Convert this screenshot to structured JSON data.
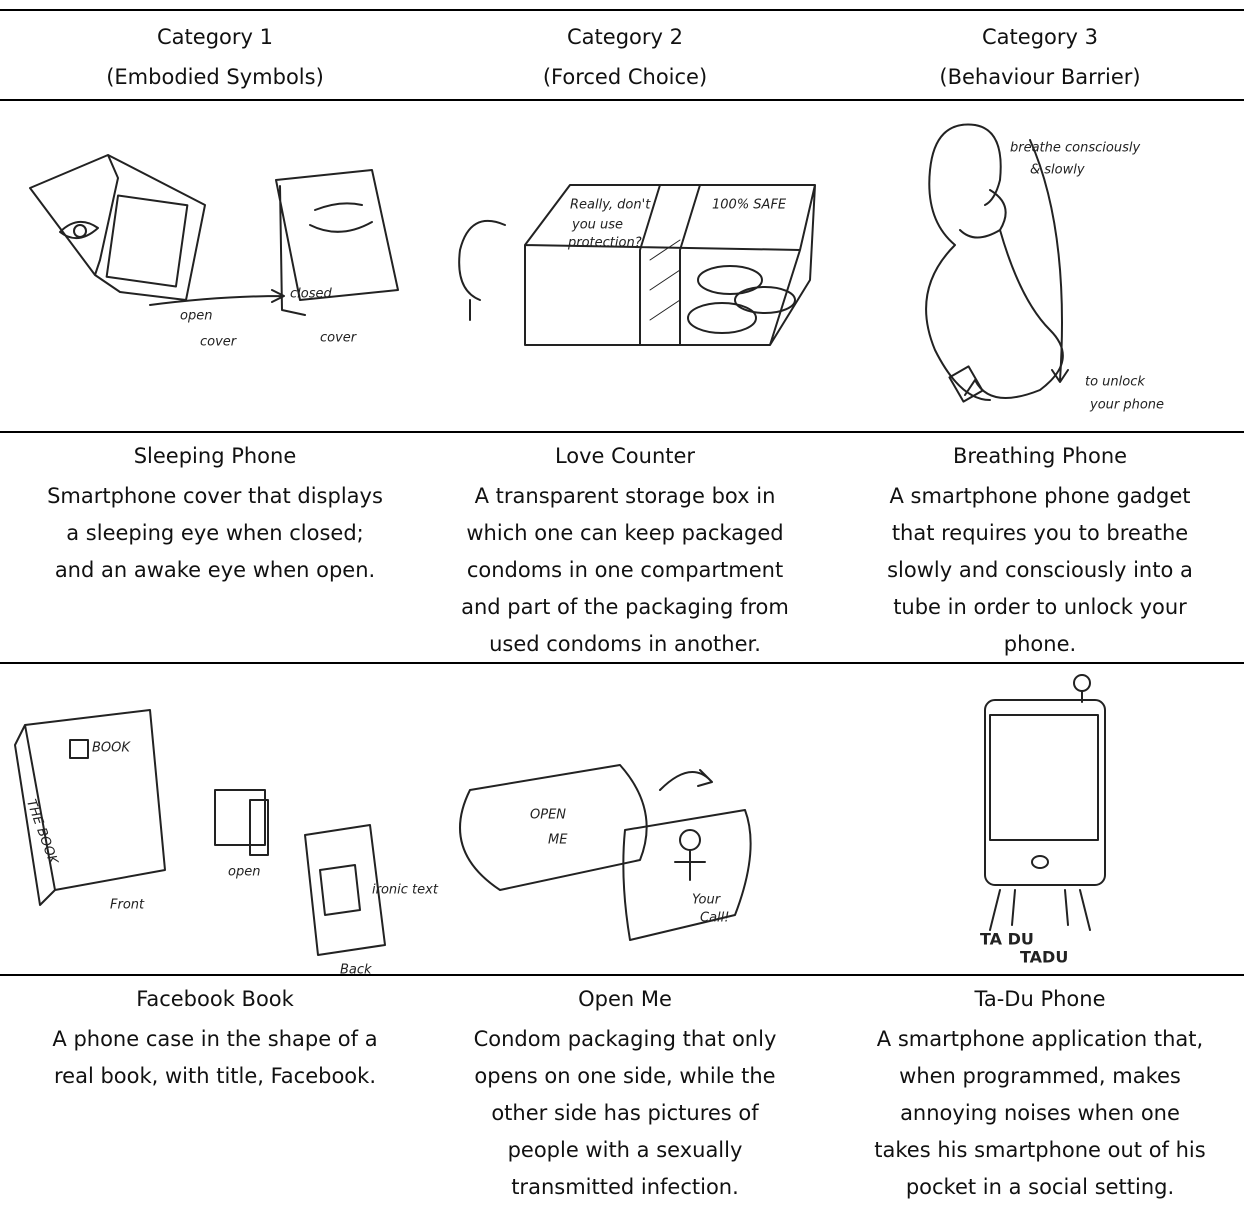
{
  "header": [
    {
      "category": "Category 1",
      "subtitle": "(Embodied Symbols)"
    },
    {
      "category": "Category 2",
      "subtitle": "(Forced Choice)"
    },
    {
      "category": "Category 3",
      "subtitle": "(Behaviour Barrier)"
    }
  ],
  "rows": [
    {
      "items": [
        {
          "title": "Sleeping Phone",
          "description": [
            "Smartphone cover that displays",
            "a sleeping eye when closed;",
            "and an awake eye when open."
          ],
          "sketch_labels": [
            "open",
            "cover",
            "closed",
            "cover"
          ]
        },
        {
          "title": "Love Counter",
          "description": [
            "A transparent storage box in",
            "which one can keep packaged",
            "condoms in one compartment",
            "and part of the packaging from",
            "used condoms in another."
          ],
          "sketch_labels": [
            "Really, don't",
            "you use",
            "protection?",
            "100% SAFE"
          ]
        },
        {
          "title": "Breathing Phone",
          "description": [
            "A smartphone phone gadget",
            "that requires you to breathe",
            "slowly and consciously into a",
            "tube in order to unlock your",
            "phone."
          ],
          "sketch_labels": [
            "breathe consciously",
            "& slowly",
            "to unlock",
            "your phone"
          ]
        }
      ]
    },
    {
      "items": [
        {
          "title": "Facebook Book",
          "description": [
            "A phone case in the shape of a",
            "real book, with title, Facebook."
          ],
          "sketch_labels": [
            "BOOK",
            "THE BOOK",
            "open",
            "Front",
            "Back",
            "ironic text"
          ]
        },
        {
          "title": "Open Me",
          "description": [
            "Condom packaging that only",
            "opens on one side, while the",
            "other side has pictures of",
            "people with a sexually",
            "transmitted infection."
          ],
          "sketch_labels": [
            "OPEN",
            "ME",
            "Your",
            "Call!"
          ]
        },
        {
          "title": "Ta-Du Phone",
          "description": [
            "A smartphone application that,",
            "when programmed, makes",
            "annoying noises when one",
            "takes his smartphone out of his",
            "pocket in a social setting."
          ],
          "sketch_labels": [
            "TA DU",
            "TADU"
          ]
        }
      ]
    }
  ]
}
